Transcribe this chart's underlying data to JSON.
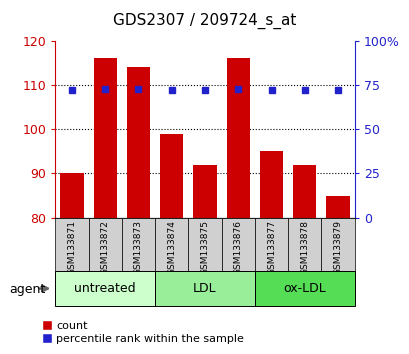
{
  "title": "GDS2307 / 209724_s_at",
  "samples": [
    "GSM133871",
    "GSM133872",
    "GSM133873",
    "GSM133874",
    "GSM133875",
    "GSM133876",
    "GSM133877",
    "GSM133878",
    "GSM133879"
  ],
  "bar_values": [
    90,
    116,
    114,
    99,
    92,
    116,
    95,
    92,
    85
  ],
  "bar_bottom": 80,
  "percentile_values": [
    72,
    73,
    73,
    72,
    72,
    73,
    72,
    72,
    72
  ],
  "ylim_left": [
    80,
    120
  ],
  "ylim_right": [
    0,
    100
  ],
  "yticks_left": [
    80,
    90,
    100,
    110,
    120
  ],
  "yticks_right": [
    0,
    25,
    50,
    75,
    100
  ],
  "bar_color": "#cc0000",
  "dot_color": "#2222cc",
  "groups": [
    {
      "label": "untreated",
      "start": 0,
      "end": 3,
      "color": "#ccffcc"
    },
    {
      "label": "LDL",
      "start": 3,
      "end": 6,
      "color": "#99ee99"
    },
    {
      "label": "ox-LDL",
      "start": 6,
      "end": 9,
      "color": "#55dd55"
    }
  ],
  "agent_label": "agent",
  "legend_count_label": "count",
  "legend_pct_label": "percentile rank within the sample",
  "title_fontsize": 11,
  "axis_label_color_left": "#cc0000",
  "axis_label_color_right": "#2222cc",
  "bar_width": 0.7,
  "sample_bg_color": "#d0d0d0",
  "group_label_fontsize": 9,
  "sample_fontsize": 6.5
}
